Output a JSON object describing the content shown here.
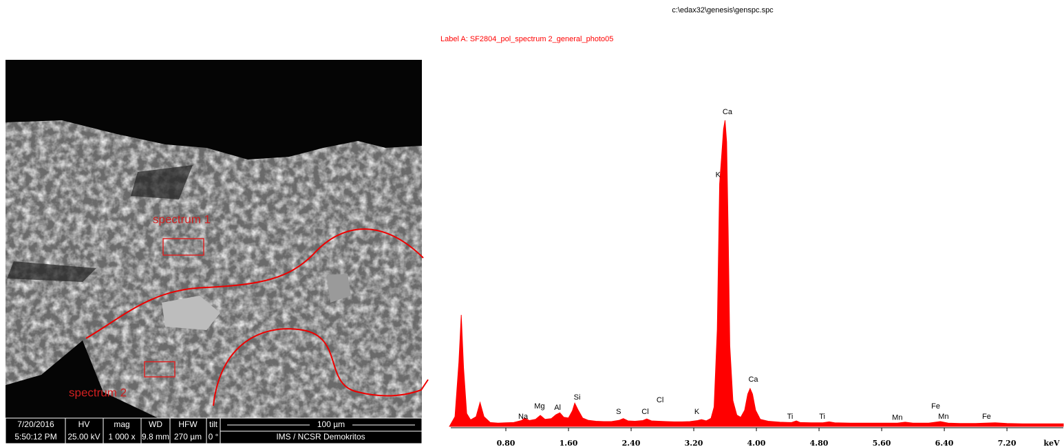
{
  "header": {
    "file_path": "c:\\edax32\\genesis\\genspc.spc",
    "label": "Label A: SF2804_pol_spectrum 2_general_photo05"
  },
  "sem_image": {
    "annotations": [
      "spectrum 1",
      "spectrum 2"
    ],
    "info_bar": {
      "date": "7/20/2016",
      "time": "5:50:12 PM",
      "hv_label": "HV",
      "hv": "25.00 kV",
      "mag_label": "mag",
      "mag": "1 000 x",
      "wd_label": "WD",
      "wd": "9.8 mm",
      "hfw_label": "HFW",
      "hfw": "270 µm",
      "tilt_label": "tilt",
      "tilt": "0 °",
      "scale": "100 µm",
      "institution": "IMS / NCSR Demokritos"
    }
  },
  "chart_data": {
    "type": "area",
    "xlabel": "keV",
    "color": "#ff0000",
    "x": [
      0.08,
      0.15,
      0.2,
      0.23,
      0.26,
      0.3,
      0.35,
      0.42,
      0.47,
      0.52,
      0.6,
      0.7,
      0.8,
      0.9,
      1.0,
      1.04,
      1.1,
      1.18,
      1.24,
      1.3,
      1.38,
      1.44,
      1.49,
      1.54,
      1.6,
      1.65,
      1.68,
      1.72,
      1.78,
      1.85,
      1.95,
      2.05,
      2.15,
      2.25,
      2.3,
      2.36,
      2.45,
      2.55,
      2.6,
      2.66,
      2.75,
      2.85,
      2.95,
      3.05,
      3.15,
      3.25,
      3.3,
      3.36,
      3.42,
      3.46,
      3.5,
      3.53,
      3.56,
      3.58,
      3.6,
      3.62,
      3.64,
      3.66,
      3.7,
      3.75,
      3.8,
      3.85,
      3.89,
      3.92,
      3.95,
      3.99,
      4.05,
      4.15,
      4.3,
      4.45,
      4.51,
      4.56,
      4.7,
      4.85,
      4.93,
      5.0,
      5.2,
      5.4,
      5.6,
      5.8,
      5.9,
      6.0,
      6.2,
      6.35,
      6.45,
      6.6,
      6.8,
      7.05,
      7.2,
      7.4,
      7.6,
      7.92
    ],
    "values": [
      0,
      3,
      20,
      34.5,
      18,
      4,
      2,
      3,
      7.4,
      3,
      1.2,
      1,
      1.1,
      1.2,
      1.8,
      2.6,
      1.8,
      2.2,
      3.4,
      2.2,
      2.4,
      3.6,
      4.2,
      2.8,
      2.6,
      4.8,
      7.2,
      5.2,
      2.6,
      1.9,
      1.6,
      1.5,
      1.5,
      1.9,
      2.4,
      1.7,
      1.6,
      1.8,
      2.3,
      1.7,
      1.6,
      1.5,
      1.4,
      1.4,
      1.5,
      1.8,
      2.1,
      1.7,
      2.5,
      6,
      30,
      75,
      85,
      92,
      94.7,
      88,
      60,
      25,
      8,
      3.5,
      2.8,
      5,
      10,
      11.7,
      10,
      5,
      2.2,
      1.6,
      1.3,
      1.2,
      1.7,
      1.2,
      1.1,
      1.1,
      1.4,
      1.1,
      1,
      1,
      1,
      1,
      1.3,
      1,
      1,
      1.5,
      1,
      0.9,
      0.9,
      1.1,
      0.9,
      0.8,
      0.8,
      0.8
    ],
    "xlim": [
      0,
      7.92
    ],
    "ylim": [
      0,
      100
    ],
    "xticks": [
      {
        "value": 0.8,
        "label": "0.80"
      },
      {
        "value": 1.6,
        "label": "1.60"
      },
      {
        "value": 2.4,
        "label": "2.40"
      },
      {
        "value": 3.2,
        "label": "3.20"
      },
      {
        "value": 4.0,
        "label": "4.00"
      },
      {
        "value": 4.8,
        "label": "4.80"
      },
      {
        "value": 5.6,
        "label": "5.60"
      },
      {
        "value": 6.4,
        "label": "6.40"
      },
      {
        "value": 7.2,
        "label": "7.20"
      }
    ],
    "peak_labels": [
      {
        "text": "Ca",
        "x": 3.63,
        "y": 97.2
      },
      {
        "text": "K",
        "x": 3.51,
        "y": 77.7
      },
      {
        "text": "Ca",
        "x": 3.96,
        "y": 14.5
      },
      {
        "text": "Na",
        "x": 1.02,
        "y": 3
      },
      {
        "text": "Mg",
        "x": 1.23,
        "y": 6.2
      },
      {
        "text": "Al",
        "x": 1.46,
        "y": 5.7
      },
      {
        "text": "Si",
        "x": 1.71,
        "y": 8.9
      },
      {
        "text": "S",
        "x": 2.24,
        "y": 4.5
      },
      {
        "text": "Cl",
        "x": 2.58,
        "y": 4.5
      },
      {
        "text": "Cl",
        "x": 2.77,
        "y": 8.1
      },
      {
        "text": "K",
        "x": 3.24,
        "y": 4.5
      },
      {
        "text": "Ti",
        "x": 4.43,
        "y": 3
      },
      {
        "text": "Ti",
        "x": 4.84,
        "y": 3
      },
      {
        "text": "Mn",
        "x": 5.8,
        "y": 2.6
      },
      {
        "text": "Mn",
        "x": 6.39,
        "y": 3
      },
      {
        "text": "Fe",
        "x": 6.29,
        "y": 6.2
      },
      {
        "text": "Fe",
        "x": 6.94,
        "y": 3
      }
    ]
  }
}
